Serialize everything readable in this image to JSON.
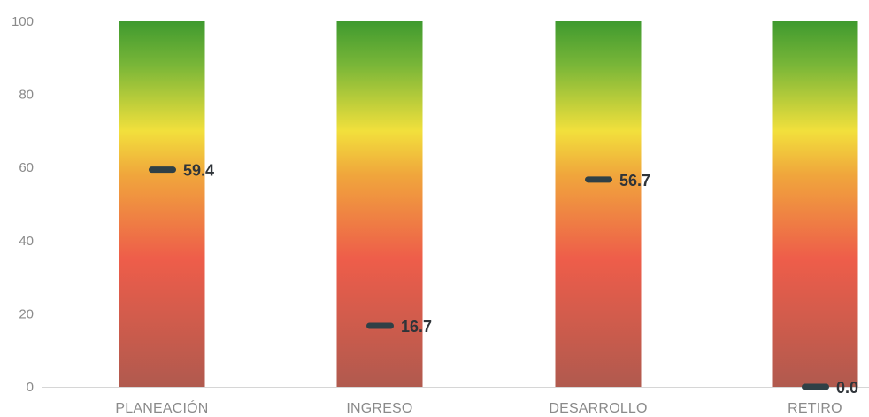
{
  "chart_data": {
    "type": "bar",
    "categories": [
      "PLANEACIÓN",
      "INGRESO",
      "DESARROLLO",
      "RETIRO"
    ],
    "values": [
      59.4,
      16.7,
      56.7,
      0.0
    ],
    "value_labels": [
      "59.4",
      "16.7",
      "56.7",
      "0.0"
    ],
    "y_ticks": [
      "0",
      "20",
      "40",
      "60",
      "80",
      "100"
    ],
    "ylim": [
      0,
      100
    ],
    "grid": false,
    "title": "",
    "xlabel": "",
    "ylabel": "",
    "gradient_colors": {
      "top": "#3f9a2f",
      "green": "#79b638",
      "yellow": "#f2e03c",
      "orange": "#f0a63c",
      "red": "#ee5d4a",
      "bottom": "#b05a4e"
    },
    "marker_color": "#2f4046"
  }
}
